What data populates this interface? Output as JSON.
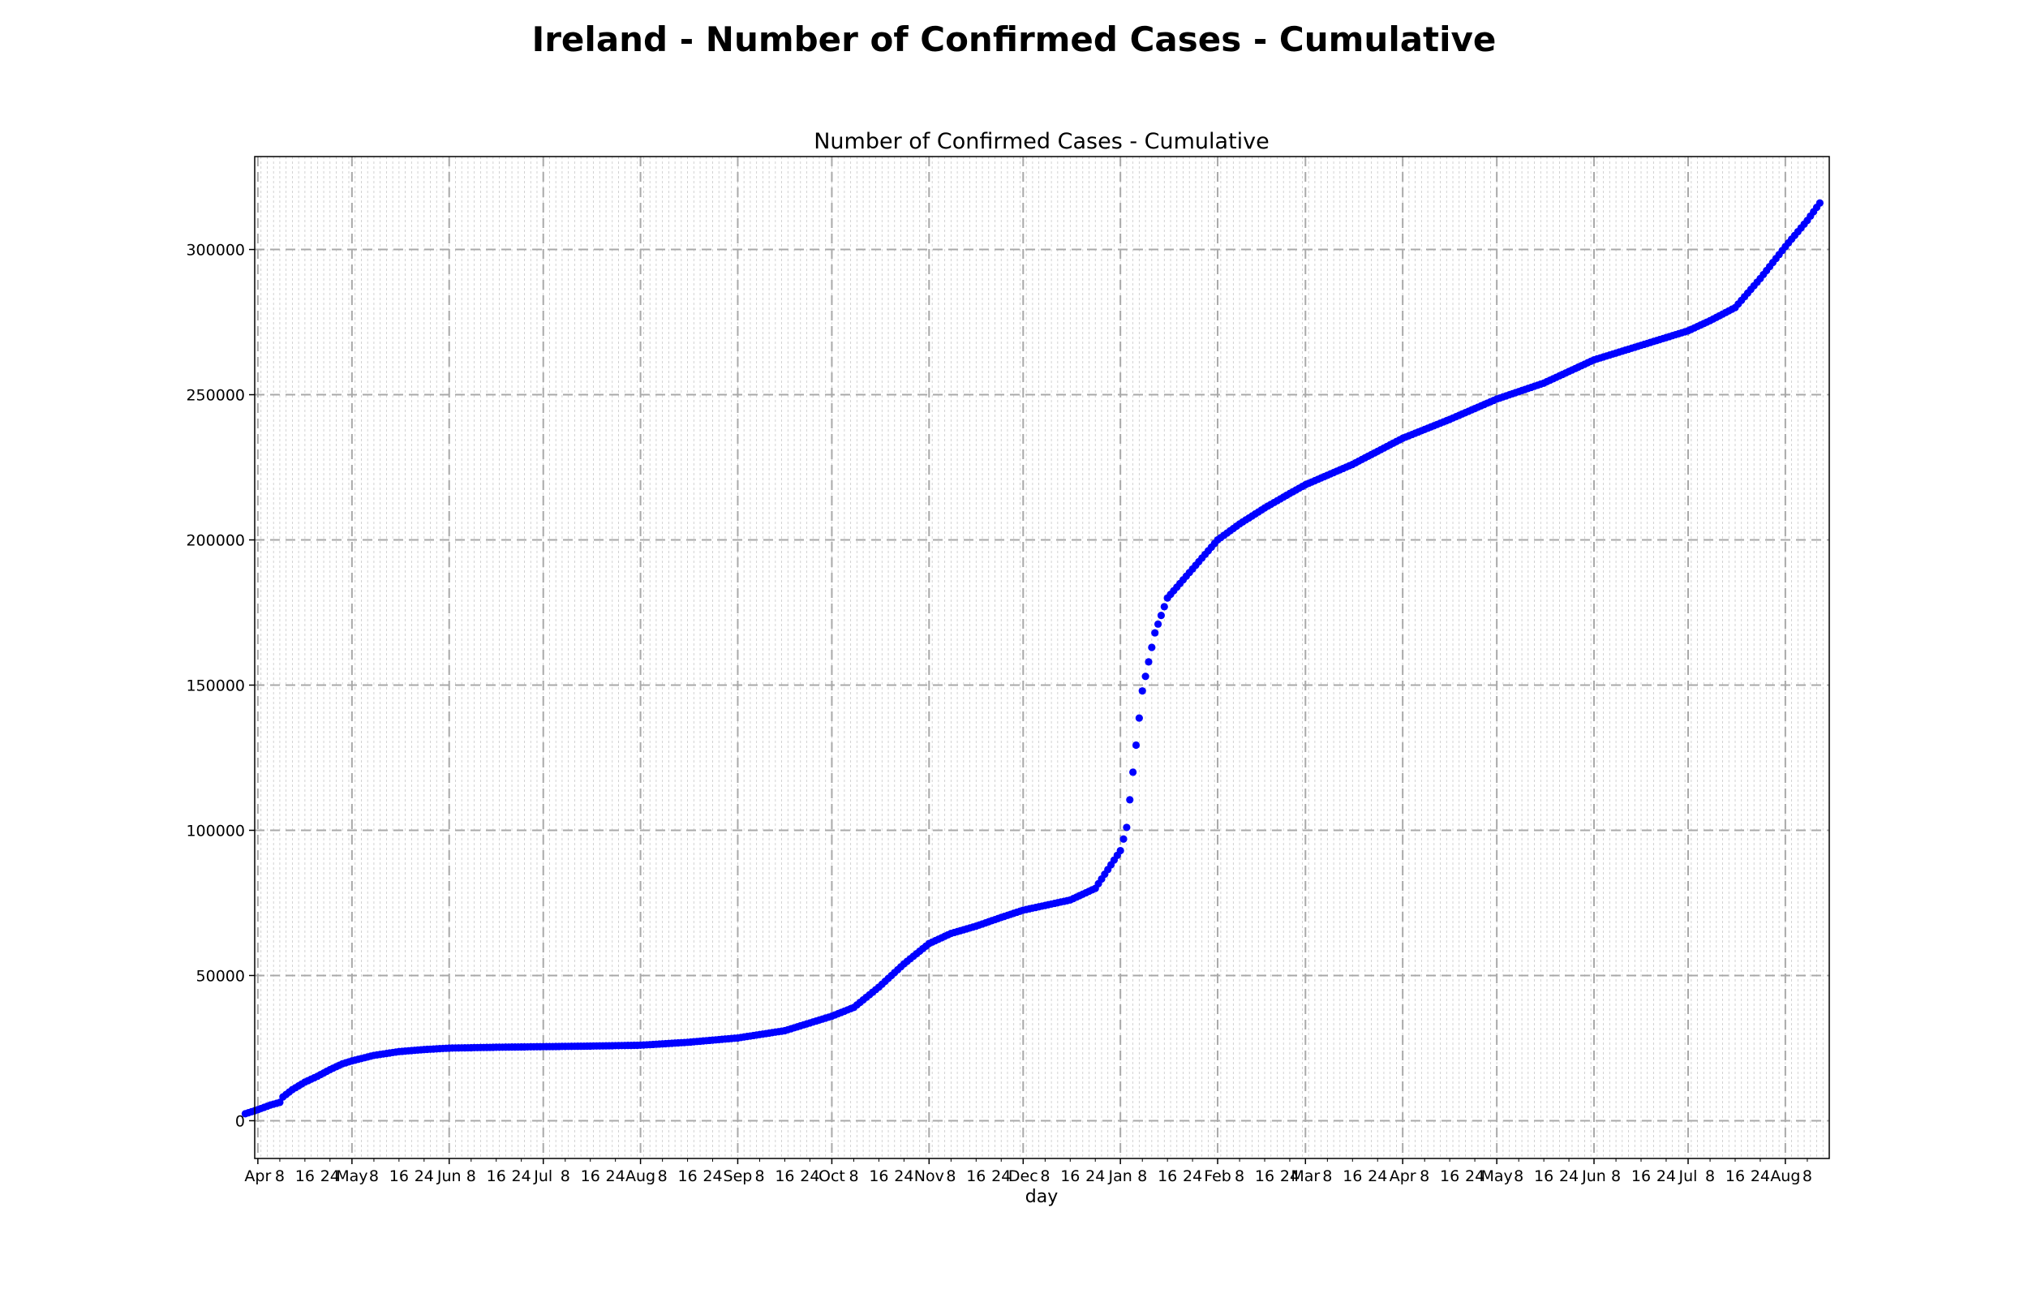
{
  "suptitle": "Ireland - Number of Confirmed Cases - Cumulative",
  "chart_data": {
    "type": "scatter",
    "title": "Number of Confirmed Cases - Cumulative",
    "xlabel": "day",
    "ylabel": "",
    "x_range": [
      "2020-03-31",
      "2021-08-15"
    ],
    "ylim": [
      -13000,
      332000
    ],
    "yticks": [
      0,
      50000,
      100000,
      150000,
      200000,
      250000,
      300000
    ],
    "xticks_major": [
      {
        "date": "2020-04-01",
        "label": "Apr"
      },
      {
        "date": "2020-05-01",
        "label": "May"
      },
      {
        "date": "2020-06-01",
        "label": "Jun"
      },
      {
        "date": "2020-07-01",
        "label": "Jul"
      },
      {
        "date": "2020-08-01",
        "label": "Aug"
      },
      {
        "date": "2020-09-01",
        "label": "Sep"
      },
      {
        "date": "2020-10-01",
        "label": "Oct"
      },
      {
        "date": "2020-11-01",
        "label": "Nov"
      },
      {
        "date": "2020-12-01",
        "label": "Dec"
      },
      {
        "date": "2021-01-01",
        "label": "Jan"
      },
      {
        "date": "2021-02-01",
        "label": "Feb"
      },
      {
        "date": "2021-03-01",
        "label": "Mar"
      },
      {
        "date": "2021-04-01",
        "label": "Apr"
      },
      {
        "date": "2021-05-01",
        "label": "May"
      },
      {
        "date": "2021-06-01",
        "label": "Jun"
      },
      {
        "date": "2021-07-01",
        "label": "Jul"
      },
      {
        "date": "2021-08-01",
        "label": "Aug"
      }
    ],
    "minor_tick_days": [
      "8",
      "16",
      "24"
    ],
    "grid": true,
    "marker_color": "#0000ff",
    "series": [
      {
        "values": [
          {
            "x": "2020-03-28",
            "y": 2400
          },
          {
            "x": "2020-04-01",
            "y": 3800
          },
          {
            "x": "2020-04-05",
            "y": 5400
          },
          {
            "x": "2020-04-08",
            "y": 6300
          },
          {
            "x": "2020-04-09",
            "y": 8200
          },
          {
            "x": "2020-04-12",
            "y": 10700
          },
          {
            "x": "2020-04-16",
            "y": 13300
          },
          {
            "x": "2020-04-20",
            "y": 15300
          },
          {
            "x": "2020-04-24",
            "y": 17600
          },
          {
            "x": "2020-04-28",
            "y": 19600
          },
          {
            "x": "2020-05-01",
            "y": 20600
          },
          {
            "x": "2020-05-08",
            "y": 22500
          },
          {
            "x": "2020-05-16",
            "y": 23800
          },
          {
            "x": "2020-05-24",
            "y": 24500
          },
          {
            "x": "2020-06-01",
            "y": 25000
          },
          {
            "x": "2020-06-16",
            "y": 25300
          },
          {
            "x": "2020-07-01",
            "y": 25500
          },
          {
            "x": "2020-07-16",
            "y": 25700
          },
          {
            "x": "2020-08-01",
            "y": 26000
          },
          {
            "x": "2020-08-16",
            "y": 27000
          },
          {
            "x": "2020-09-01",
            "y": 28500
          },
          {
            "x": "2020-09-16",
            "y": 31000
          },
          {
            "x": "2020-10-01",
            "y": 36000
          },
          {
            "x": "2020-10-08",
            "y": 39000
          },
          {
            "x": "2020-10-16",
            "y": 46000
          },
          {
            "x": "2020-10-24",
            "y": 54000
          },
          {
            "x": "2020-11-01",
            "y": 61000
          },
          {
            "x": "2020-11-08",
            "y": 64500
          },
          {
            "x": "2020-11-16",
            "y": 67000
          },
          {
            "x": "2020-11-24",
            "y": 70000
          },
          {
            "x": "2020-12-01",
            "y": 72500
          },
          {
            "x": "2020-12-16",
            "y": 76000
          },
          {
            "x": "2020-12-24",
            "y": 80000
          },
          {
            "x": "2021-01-01",
            "y": 93000
          },
          {
            "x": "2021-01-03",
            "y": 101000
          },
          {
            "x": "2021-01-05",
            "y": 120000
          },
          {
            "x": "2021-01-08",
            "y": 148000
          },
          {
            "x": "2021-01-12",
            "y": 168000
          },
          {
            "x": "2021-01-16",
            "y": 180000
          },
          {
            "x": "2021-01-24",
            "y": 190000
          },
          {
            "x": "2021-02-01",
            "y": 200000
          },
          {
            "x": "2021-02-08",
            "y": 205500
          },
          {
            "x": "2021-02-16",
            "y": 211000
          },
          {
            "x": "2021-02-24",
            "y": 216000
          },
          {
            "x": "2021-03-01",
            "y": 219000
          },
          {
            "x": "2021-03-16",
            "y": 226000
          },
          {
            "x": "2021-04-01",
            "y": 235000
          },
          {
            "x": "2021-04-16",
            "y": 241500
          },
          {
            "x": "2021-05-01",
            "y": 248500
          },
          {
            "x": "2021-05-16",
            "y": 254000
          },
          {
            "x": "2021-06-01",
            "y": 262000
          },
          {
            "x": "2021-06-16",
            "y": 267000
          },
          {
            "x": "2021-07-01",
            "y": 272000
          },
          {
            "x": "2021-07-08",
            "y": 275500
          },
          {
            "x": "2021-07-16",
            "y": 280000
          },
          {
            "x": "2021-07-24",
            "y": 290000
          },
          {
            "x": "2021-08-01",
            "y": 301000
          },
          {
            "x": "2021-08-08",
            "y": 310000
          },
          {
            "x": "2021-08-12",
            "y": 316000
          }
        ]
      }
    ]
  }
}
